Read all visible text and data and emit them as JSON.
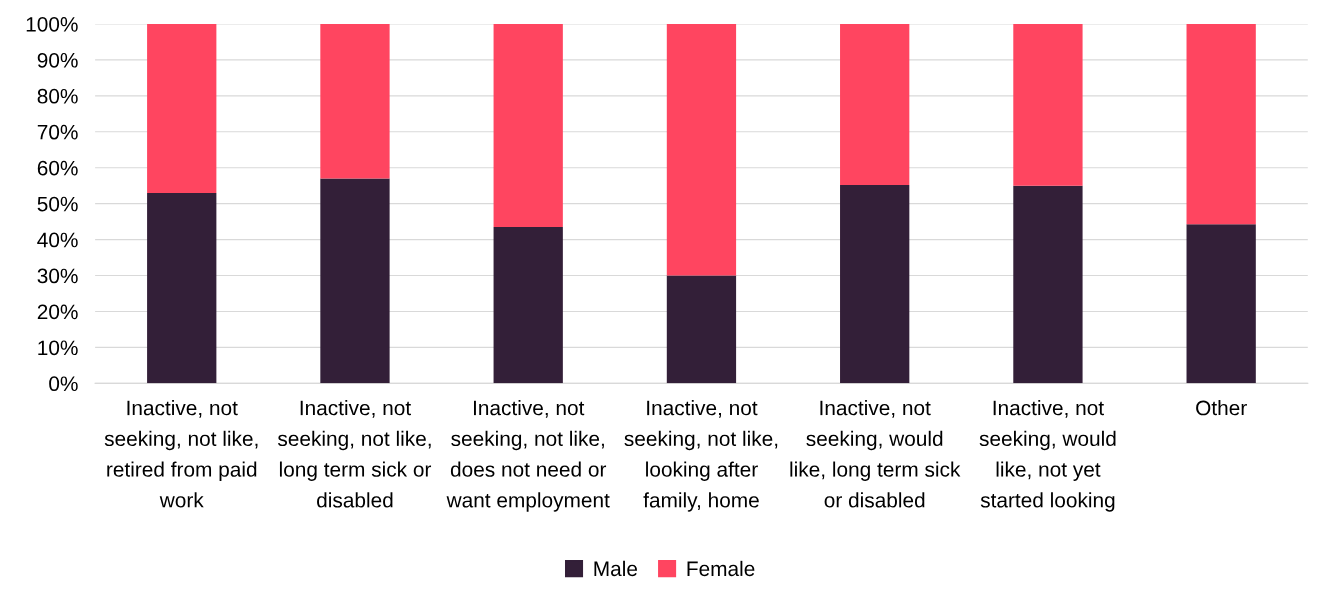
{
  "chart_data": {
    "type": "bar",
    "stacked": true,
    "categories": [
      "Inactive, not\nseeking, not like,\nretired from paid\nwork",
      "Inactive, not\nseeking, not like,\nlong term sick or\ndisabled",
      "Inactive, not\nseeking, not like,\ndoes not need or\nwant employment",
      "Inactive, not\nseeking, not like,\nlooking after\nfamily, home",
      "Inactive, not\nseeking, would\nlike, long term sick\nor disabled",
      "Inactive, not\nseeking, would\nlike, not yet\nstarted looking",
      "Other"
    ],
    "series": [
      {
        "name": "Male",
        "color": "#331f38",
        "values": [
          53,
          57,
          43.5,
          30,
          55.2,
          55,
          44.3
        ]
      },
      {
        "name": "Female",
        "color": "#ff4560",
        "values": [
          47,
          43,
          56.5,
          70,
          44.8,
          45,
          55.7
        ]
      }
    ],
    "ylim": [
      0,
      100
    ],
    "yticks": [
      {
        "value": 0,
        "label": "0%"
      },
      {
        "value": 10,
        "label": "10%"
      },
      {
        "value": 20,
        "label": "20%"
      },
      {
        "value": 30,
        "label": "30%"
      },
      {
        "value": 40,
        "label": "40%"
      },
      {
        "value": 50,
        "label": "50%"
      },
      {
        "value": 60,
        "label": "60%"
      },
      {
        "value": 70,
        "label": "70%"
      },
      {
        "value": 80,
        "label": "80%"
      },
      {
        "value": 90,
        "label": "90%"
      },
      {
        "value": 100,
        "label": "100%"
      }
    ],
    "grid": "y",
    "legend": "bottom"
  }
}
